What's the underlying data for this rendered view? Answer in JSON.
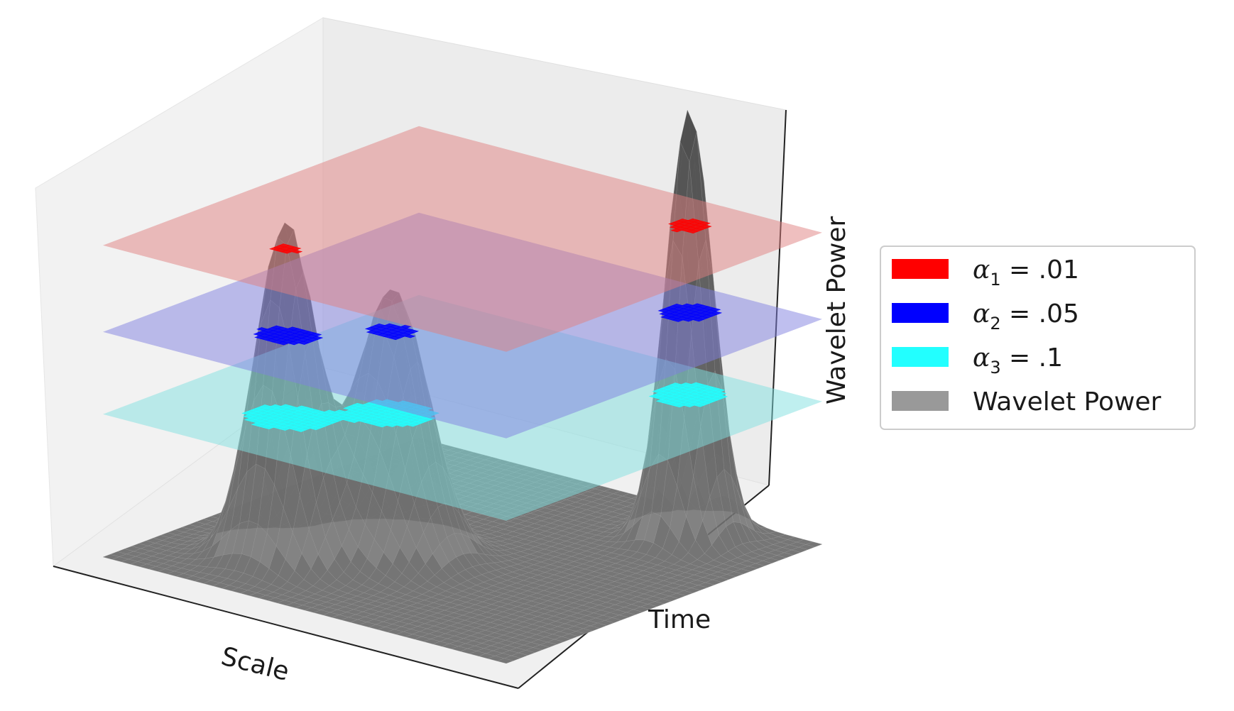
{
  "chart_data": {
    "type": "surface3d",
    "xlabel": "Scale",
    "ylabel": "Time",
    "zlabel": "Wavelet Power",
    "grid": false,
    "legend_position": "right",
    "surface": {
      "name": "Wavelet Power",
      "color": "#999999",
      "peaks": [
        {
          "scale": 0.28,
          "time": 0.22,
          "height": 0.78
        },
        {
          "scale": 0.42,
          "time": 0.38,
          "height": 0.62
        },
        {
          "scale": 0.78,
          "time": 0.86,
          "height": 1.0
        }
      ]
    },
    "thresholds": [
      {
        "name": "α₁ = .01",
        "symbol": "α",
        "index": "1",
        "value_label": ".01",
        "color": "#ff0000",
        "plane_color": "#e08080",
        "level": 0.72
      },
      {
        "name": "α₂ = .05",
        "symbol": "α",
        "index": "2",
        "value_label": ".05",
        "color": "#0000ff",
        "plane_color": "#8080e0",
        "level": 0.52
      },
      {
        "name": "α₃ = .1",
        "symbol": "α",
        "index": "3",
        "value_label": ".1",
        "color": "#22ffff",
        "plane_color": "#80e0e0",
        "level": 0.33
      }
    ],
    "legend": [
      {
        "symbol": "α",
        "index": "1",
        "text": " = .01",
        "color": "#ff0000"
      },
      {
        "symbol": "α",
        "index": "2",
        "text": " = .05",
        "color": "#0000ff"
      },
      {
        "symbol": "α",
        "index": "3",
        "text": " = .1",
        "color": "#22ffff"
      },
      {
        "symbol": "",
        "index": "",
        "text": "Wavelet Power",
        "color": "#999999"
      }
    ]
  }
}
